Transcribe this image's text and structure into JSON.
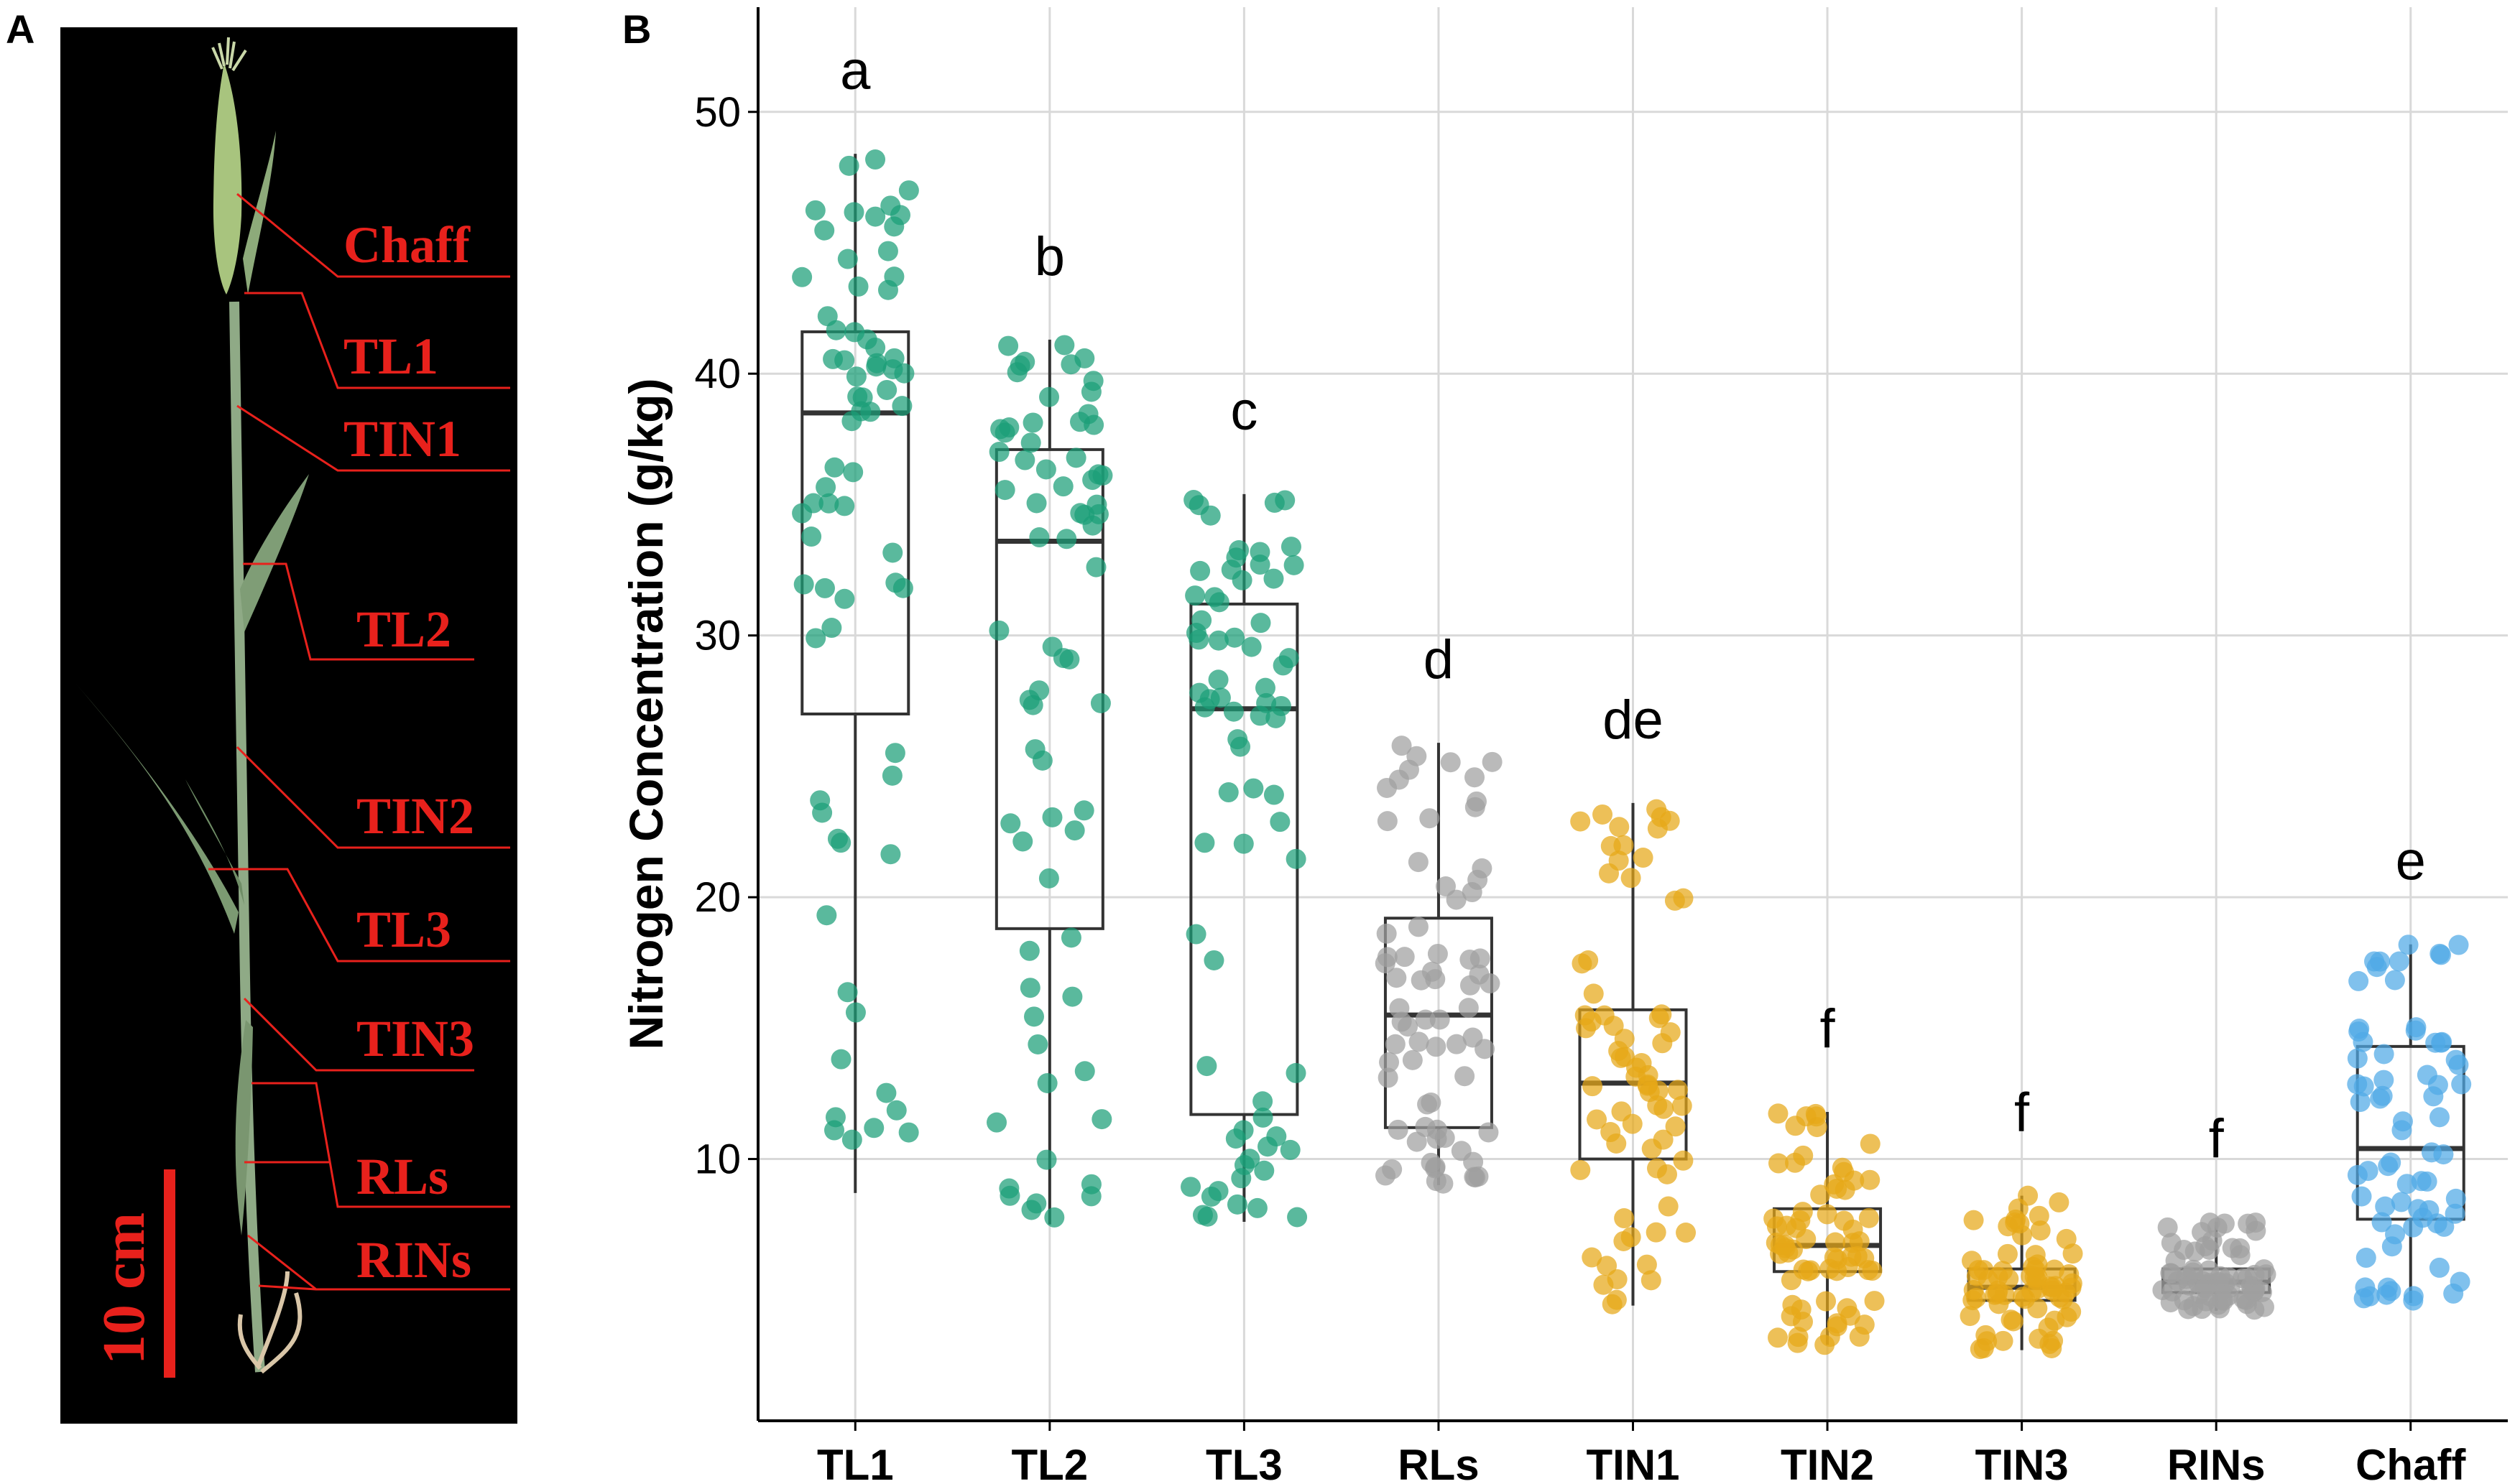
{
  "panel_a": {
    "letter": "A",
    "labels": [
      "Chaff",
      "TL1",
      "TIN1",
      "TL2",
      "TIN2",
      "TL3",
      "TIN3",
      "RLs",
      "RINs"
    ],
    "scale_label": "10 cm",
    "background_color": "#000000",
    "label_color": "#e8211c"
  },
  "panel_b": {
    "letter": "B"
  },
  "chart_data": {
    "type": "box",
    "title": "",
    "xlabel": "",
    "ylabel": "Nitrogen Concentration (g/kg)",
    "ylim": [
      0,
      54
    ],
    "yticks": [
      10,
      20,
      30,
      40,
      50
    ],
    "grid": true,
    "categories": [
      "TL1",
      "TL2",
      "TL3",
      "RLs",
      "TIN1",
      "TIN2",
      "TIN3",
      "RINs",
      "Chaff"
    ],
    "colors": [
      "#1a9e77",
      "#1a9e77",
      "#1a9e77",
      "#a0a0a0",
      "#e6a817",
      "#e6a817",
      "#e6a817",
      "#a0a0a0",
      "#4fa9e6"
    ],
    "significance": [
      "a",
      "b",
      "c",
      "d",
      "de",
      "f",
      "f",
      "f",
      "e"
    ],
    "boxes": [
      {
        "min": 8.7,
        "q1": 27.0,
        "median": 38.5,
        "q3": 41.6,
        "max": 48.4
      },
      {
        "min": 7.5,
        "q1": 18.8,
        "median": 33.6,
        "q3": 37.1,
        "max": 41.3
      },
      {
        "min": 7.6,
        "q1": 11.7,
        "median": 27.2,
        "q3": 31.2,
        "max": 35.4
      },
      {
        "min": 9.0,
        "q1": 11.2,
        "median": 15.5,
        "q3": 19.2,
        "max": 25.9
      },
      {
        "min": 4.4,
        "q1": 10.0,
        "median": 12.9,
        "q3": 15.7,
        "max": 23.6
      },
      {
        "min": 2.9,
        "q1": 5.7,
        "median": 6.7,
        "q3": 8.1,
        "max": 11.8
      },
      {
        "min": 2.7,
        "q1": 4.6,
        "median": 5.1,
        "q3": 5.8,
        "max": 8.6
      },
      {
        "min": 4.2,
        "q1": 4.9,
        "median": 5.3,
        "q3": 5.8,
        "max": 7.6
      },
      {
        "min": 4.5,
        "q1": 7.7,
        "median": 10.4,
        "q3": 14.3,
        "max": 18.2
      }
    ]
  }
}
